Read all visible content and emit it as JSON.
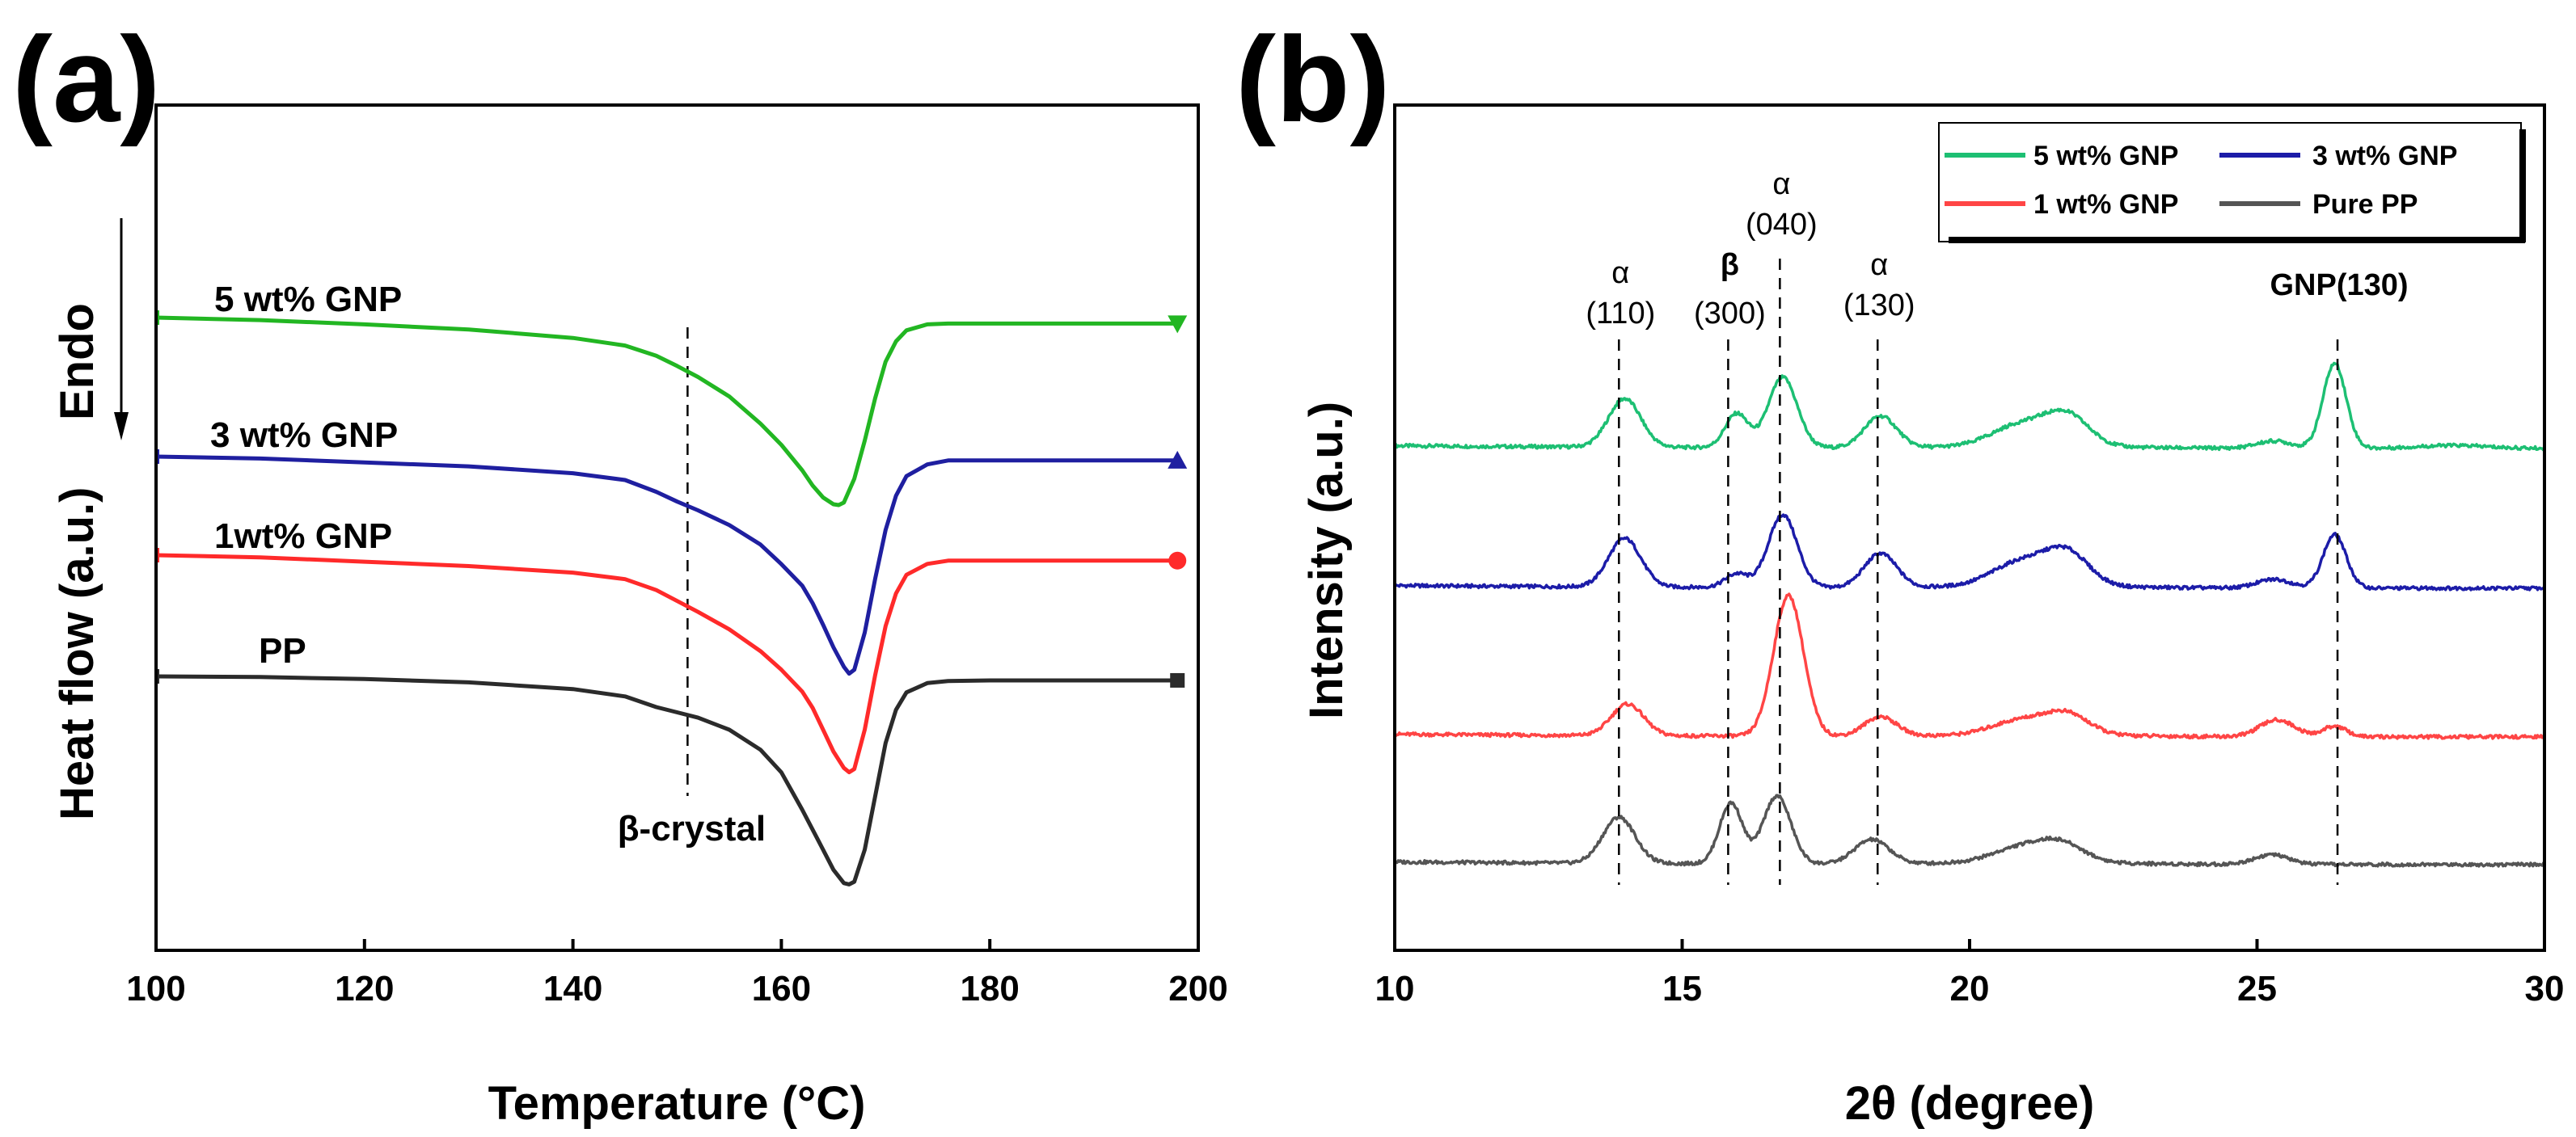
{
  "figure": {
    "panel_a_label": "(a)",
    "panel_b_label": "(b)"
  },
  "chart_data": [
    {
      "type": "line",
      "panel": "(a)",
      "title": "",
      "xlabel": "Temperature (°C)",
      "ylabel": "Heat flow (a.u.)",
      "xlim": [
        100,
        200
      ],
      "xticks": [
        100,
        120,
        140,
        160,
        180,
        200
      ],
      "yticks_shown": false,
      "endo_label": "Endo",
      "endo_direction": "down",
      "reference_line": {
        "x": 151,
        "label": "β-crystal"
      },
      "series": [
        {
          "name": "PP",
          "label": "PP",
          "color": "#2b2b2b",
          "marker": "square",
          "x": [
            100,
            110,
            120,
            130,
            140,
            145,
            148,
            150,
            152,
            155,
            158,
            160,
            162,
            164,
            165,
            166,
            166.5,
            167,
            168,
            169,
            170,
            171,
            172,
            174,
            176,
            180,
            190,
            198
          ],
          "y": [
            0,
            -0.05,
            -0.2,
            -0.45,
            -0.95,
            -1.5,
            -2.3,
            -2.7,
            -3.1,
            -4.0,
            -5.5,
            -7.2,
            -10.0,
            -13.0,
            -14.5,
            -15.5,
            -15.6,
            -15.4,
            -13.0,
            -9.0,
            -5.0,
            -2.5,
            -1.2,
            -0.5,
            -0.35,
            -0.3,
            -0.3,
            -0.3
          ]
        },
        {
          "name": "1wt% GNP",
          "label": "1wt% GNP",
          "color": "#ff2a2a",
          "marker": "circle",
          "x": [
            100,
            110,
            120,
            130,
            140,
            145,
            148,
            150,
            152,
            155,
            158,
            160,
            162,
            163,
            164,
            165,
            166,
            166.5,
            167,
            168,
            169,
            170,
            171,
            172,
            174,
            176,
            180,
            190,
            198
          ],
          "y": [
            0,
            -0.2,
            -0.6,
            -1.0,
            -1.6,
            -2.2,
            -3.2,
            -4.2,
            -5.2,
            -6.8,
            -8.8,
            -10.5,
            -12.5,
            -14.0,
            -16.0,
            -18.0,
            -19.5,
            -19.9,
            -19.6,
            -16.0,
            -11.0,
            -6.5,
            -3.5,
            -1.8,
            -0.8,
            -0.5,
            -0.5,
            -0.5,
            -0.5
          ]
        },
        {
          "name": "3 wt% GNP",
          "label": "3 wt% GNP",
          "color": "#1f1fa0",
          "marker": "triangle",
          "x": [
            100,
            110,
            120,
            130,
            140,
            145,
            148,
            150,
            152,
            155,
            158,
            160,
            162,
            163,
            164,
            165,
            166,
            166.5,
            167,
            168,
            169,
            170,
            171,
            172,
            174,
            176,
            180,
            190,
            198
          ],
          "y": [
            0,
            -0.2,
            -0.6,
            -1.0,
            -1.7,
            -2.4,
            -3.6,
            -4.6,
            -5.5,
            -7.0,
            -9.0,
            -11.0,
            -13.2,
            -15.0,
            -17.2,
            -19.5,
            -21.5,
            -22.2,
            -21.8,
            -18.0,
            -12.5,
            -7.5,
            -4.0,
            -2.0,
            -0.8,
            -0.4,
            -0.4,
            -0.4,
            -0.4
          ]
        },
        {
          "name": "5 wt% GNP",
          "label": "5 wt% GNP",
          "color": "#22b622",
          "marker": "triangle-down",
          "x": [
            100,
            110,
            120,
            130,
            140,
            145,
            148,
            150,
            152,
            155,
            158,
            160,
            162,
            163,
            164,
            165,
            165.5,
            166,
            167,
            168,
            169,
            170,
            171,
            172,
            174,
            176,
            180,
            190,
            198
          ],
          "y": [
            0,
            -0.3,
            -0.8,
            -1.4,
            -2.4,
            -3.3,
            -4.5,
            -5.7,
            -7.0,
            -9.3,
            -12.5,
            -15.0,
            -18.0,
            -19.8,
            -21.2,
            -22.0,
            -22.1,
            -21.8,
            -19.0,
            -14.5,
            -9.5,
            -5.2,
            -2.8,
            -1.5,
            -0.8,
            -0.7,
            -0.7,
            -0.7,
            -0.7
          ]
        }
      ]
    },
    {
      "type": "line",
      "panel": "(b)",
      "title": "",
      "xlabel": "2θ (degree)",
      "ylabel": "Intensity (a.u.)",
      "xlim": [
        10,
        30
      ],
      "xticks": [
        10,
        15,
        20,
        25,
        30
      ],
      "yticks_shown": false,
      "legend": {
        "placement": "top-right",
        "entries": [
          "5 wt% GNP",
          "3 wt% GNP",
          "1 wt% GNP",
          "Pure PP"
        ]
      },
      "peak_lines": [
        13.9,
        15.8,
        16.7,
        18.4,
        26.4
      ],
      "peak_labels": [
        {
          "greek": "α",
          "hkl": "(110)",
          "x": 13.9
        },
        {
          "greek": "β",
          "hkl": "(300)",
          "x": 15.8
        },
        {
          "greek": "α",
          "hkl": "(040)",
          "x": 16.7
        },
        {
          "greek": "α",
          "hkl": "(130)",
          "x": 18.4
        },
        {
          "greek": "",
          "hkl": "GNP(130)",
          "x": 26.4
        }
      ],
      "series": [
        {
          "name": "5 wt% GNP",
          "color": "#1dbf73",
          "peaks": [
            {
              "x": 14.0,
              "h": 1.0,
              "w": 0.28
            },
            {
              "x": 15.95,
              "h": 0.7,
              "w": 0.2
            },
            {
              "x": 16.75,
              "h": 1.45,
              "w": 0.25
            },
            {
              "x": 18.45,
              "h": 0.65,
              "w": 0.28
            },
            {
              "x": 20.9,
              "h": 0.45,
              "w": 0.5
            },
            {
              "x": 21.7,
              "h": 0.6,
              "w": 0.38
            },
            {
              "x": 25.3,
              "h": 0.15,
              "w": 0.3
            },
            {
              "x": 26.35,
              "h": 1.75,
              "w": 0.2
            },
            {
              "x": 28.4,
              "h": 0.06,
              "w": 0.6
            }
          ]
        },
        {
          "name": "3 wt% GNP",
          "color": "#1c1ca8",
          "peaks": [
            {
              "x": 14.0,
              "h": 1.0,
              "w": 0.28
            },
            {
              "x": 15.95,
              "h": 0.28,
              "w": 0.2
            },
            {
              "x": 16.75,
              "h": 1.5,
              "w": 0.25
            },
            {
              "x": 18.45,
              "h": 0.7,
              "w": 0.28
            },
            {
              "x": 20.9,
              "h": 0.5,
              "w": 0.5
            },
            {
              "x": 21.7,
              "h": 0.65,
              "w": 0.38
            },
            {
              "x": 25.3,
              "h": 0.18,
              "w": 0.3
            },
            {
              "x": 26.35,
              "h": 1.1,
              "w": 0.2
            }
          ]
        },
        {
          "name": "1 wt% GNP",
          "color": "#ff4545",
          "peaks": [
            {
              "x": 14.05,
              "h": 0.65,
              "w": 0.28
            },
            {
              "x": 16.85,
              "h": 2.9,
              "w": 0.26
            },
            {
              "x": 18.45,
              "h": 0.4,
              "w": 0.28
            },
            {
              "x": 20.9,
              "h": 0.3,
              "w": 0.5
            },
            {
              "x": 21.7,
              "h": 0.4,
              "w": 0.38
            },
            {
              "x": 25.35,
              "h": 0.35,
              "w": 0.3
            },
            {
              "x": 26.35,
              "h": 0.22,
              "w": 0.2
            }
          ]
        },
        {
          "name": "Pure PP",
          "color": "#555555",
          "peaks": [
            {
              "x": 13.9,
              "h": 0.95,
              "w": 0.28
            },
            {
              "x": 15.85,
              "h": 1.25,
              "w": 0.2
            },
            {
              "x": 16.65,
              "h": 1.4,
              "w": 0.24
            },
            {
              "x": 18.3,
              "h": 0.5,
              "w": 0.3
            },
            {
              "x": 20.9,
              "h": 0.3,
              "w": 0.5
            },
            {
              "x": 21.6,
              "h": 0.35,
              "w": 0.4
            },
            {
              "x": 25.25,
              "h": 0.2,
              "w": 0.3
            }
          ]
        }
      ]
    }
  ]
}
